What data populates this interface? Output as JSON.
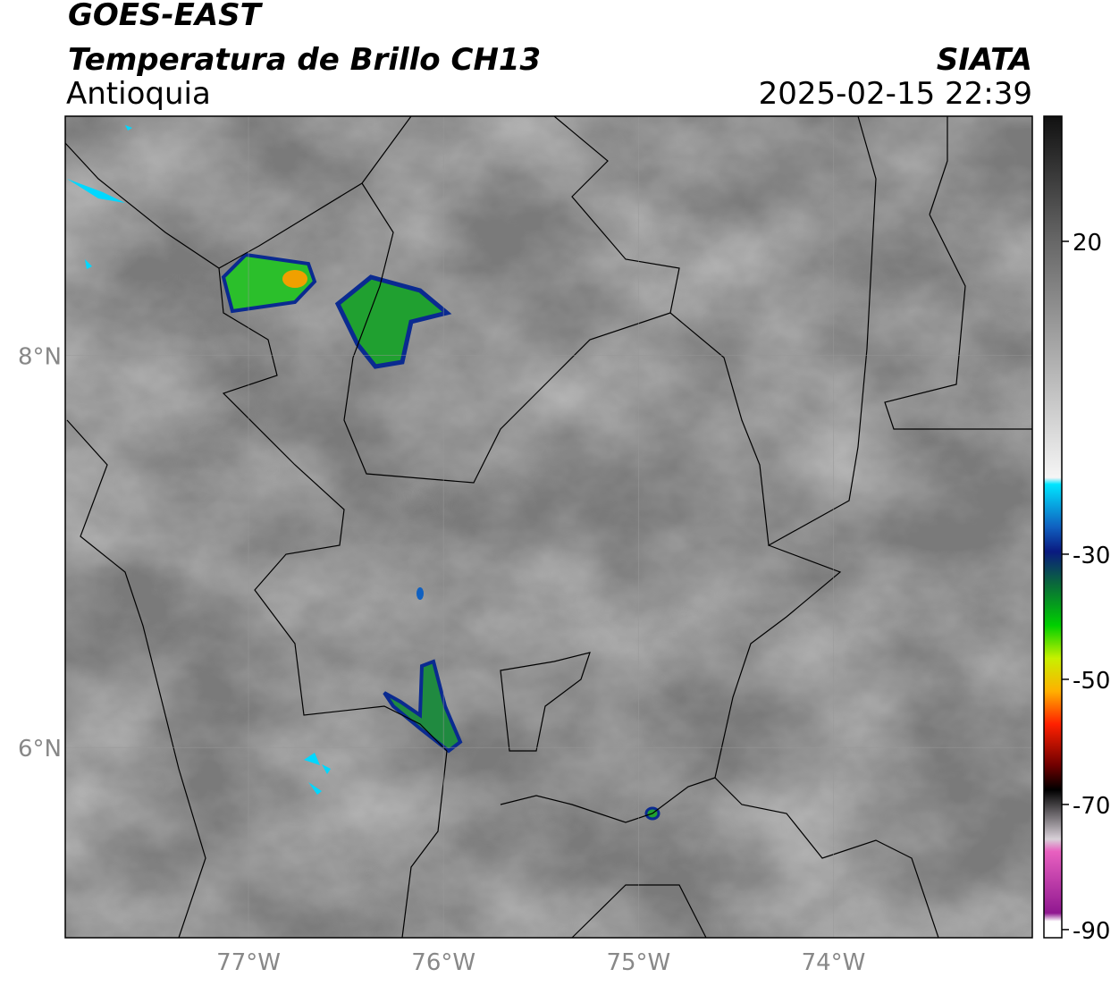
{
  "header": {
    "title": "GOES-EAST",
    "subtitle": "Temperatura de Brillo CH13",
    "region": "Antioquia",
    "source": "SIATA",
    "datetime": "2025-02-15 22:39"
  },
  "map": {
    "xlim": [
      -77.94,
      -72.98
    ],
    "ylim": [
      5.03,
      9.22
    ],
    "xticks": [
      {
        "value": -77,
        "label": "77°W"
      },
      {
        "value": -76,
        "label": "76°W"
      },
      {
        "value": -75,
        "label": "75°W"
      },
      {
        "value": -74,
        "label": "74°W"
      }
    ],
    "yticks": [
      {
        "value": 6,
        "label": "6°N"
      },
      {
        "value": 8,
        "label": "8°N"
      }
    ],
    "grid": true
  },
  "colorbar": {
    "lim": [
      -91.3,
      40
    ],
    "ticks": [
      -90,
      -70,
      -50,
      -30,
      20
    ]
  }
}
